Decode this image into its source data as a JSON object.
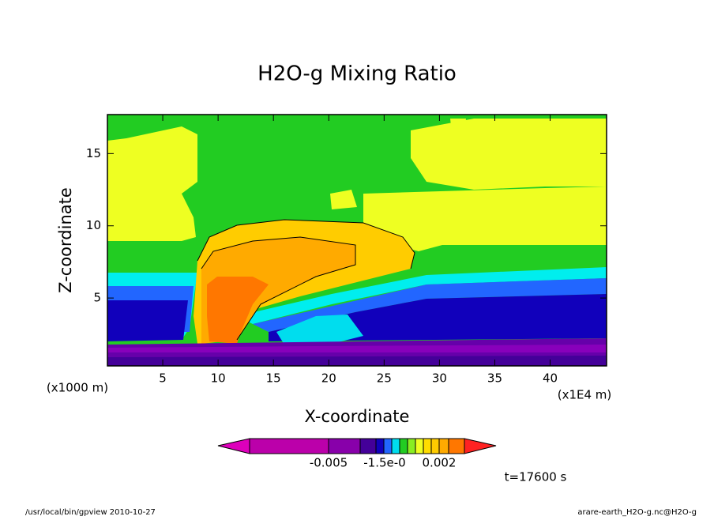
{
  "chart_data": {
    "type": "contour",
    "title": "H2O-g Mixing Ratio",
    "xlabel": "X-coordinate",
    "ylabel": "Z-coordinate",
    "x_unit": "(x1000 m)",
    "x_unit2": "(x1E4 m)",
    "xlim": [
      0,
      45.1
    ],
    "ylim": [
      0.3,
      17.7
    ],
    "xticks": [
      5,
      10,
      15,
      20,
      25,
      30,
      35,
      40
    ],
    "yticks": [
      5,
      10,
      15
    ],
    "colorbar_labels": [
      "-0.005",
      "-1.5e-0",
      "0.002"
    ],
    "annotation": "t=17600 s",
    "footer_left": "/usr/local/bin/gpview  2010-10-27",
    "footer_right": "arare-earth_H2O-g.nc@H2O-g"
  }
}
